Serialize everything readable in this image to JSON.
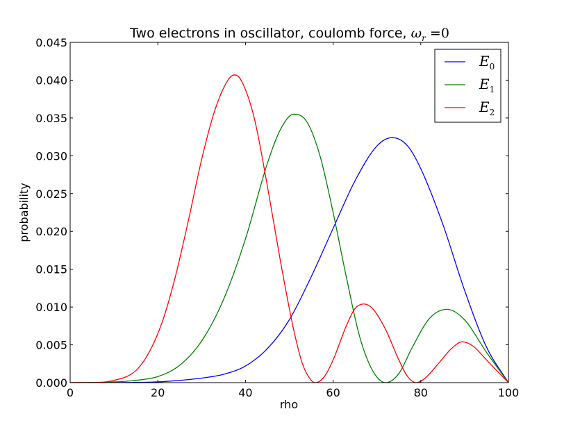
{
  "chart_data": {
    "type": "line",
    "title_text": "Two electrons in oscillator, coulomb force, ",
    "title_math": {
      "symbol": "ω",
      "subscript": "r",
      "rest": " =0"
    },
    "xlabel": "rho",
    "ylabel": "probability",
    "xlim": [
      0,
      100
    ],
    "ylim": [
      0,
      0.045
    ],
    "x_ticks": [
      0,
      20,
      40,
      60,
      80,
      100
    ],
    "y_ticks": [
      0.0,
      0.005,
      0.01,
      0.015,
      0.02,
      0.025,
      0.03,
      0.035,
      0.04,
      0.045
    ],
    "x_tick_labels": [
      "0",
      "20",
      "40",
      "60",
      "80",
      "100"
    ],
    "y_tick_labels": [
      "0.000",
      "0.005",
      "0.010",
      "0.015",
      "0.020",
      "0.025",
      "0.030",
      "0.035",
      "0.040",
      "0.045"
    ],
    "grid": false,
    "legend_position": "top-right",
    "series": [
      {
        "name": "E_0",
        "label_main": "E",
        "label_sub": "0",
        "color": "#0000ff",
        "x": [
          0,
          10,
          20,
          25,
          30,
          35,
          40,
          45,
          50,
          55,
          60,
          65,
          70,
          73.5,
          77,
          80,
          85,
          90,
          95,
          100
        ],
        "y": [
          0,
          1e-05,
          0.0001,
          0.0003,
          0.0006,
          0.0011,
          0.0022,
          0.0045,
          0.0083,
          0.014,
          0.0204,
          0.0267,
          0.0313,
          0.0324,
          0.0313,
          0.0283,
          0.021,
          0.0122,
          0.0047,
          0
        ]
      },
      {
        "name": "E_1",
        "label_main": "E",
        "label_sub": "1",
        "color": "#008000",
        "x": [
          0,
          10,
          15,
          20,
          25,
          30,
          35,
          40,
          45,
          48,
          51,
          54,
          57,
          60,
          63,
          66,
          69,
          72,
          75,
          78,
          82,
          86,
          90,
          95,
          100
        ],
        "y": [
          0,
          0.0001,
          0.0003,
          0.0008,
          0.0023,
          0.0055,
          0.011,
          0.019,
          0.029,
          0.0335,
          0.0355,
          0.0345,
          0.03,
          0.0225,
          0.014,
          0.0062,
          0.0016,
          0.0,
          0.0012,
          0.0046,
          0.0085,
          0.0097,
          0.0083,
          0.004,
          0
        ]
      },
      {
        "name": "E_2",
        "label_main": "E",
        "label_sub": "2",
        "color": "#ff0000",
        "x": [
          0,
          10,
          15,
          18,
          21,
          24,
          27,
          30,
          33,
          36,
          37.5,
          39,
          42,
          45,
          48,
          51,
          53,
          55,
          56,
          58,
          60,
          63,
          65,
          67,
          69,
          72,
          75,
          77,
          79,
          81,
          84,
          87,
          89.5,
          92,
          95,
          100
        ],
        "y": [
          0,
          0.0003,
          0.0016,
          0.004,
          0.008,
          0.014,
          0.0215,
          0.0295,
          0.036,
          0.04,
          0.0407,
          0.04,
          0.035,
          0.026,
          0.016,
          0.007,
          0.0025,
          0.0003,
          0.0,
          0.0008,
          0.003,
          0.0075,
          0.0098,
          0.0104,
          0.0098,
          0.007,
          0.003,
          0.0008,
          0.0,
          0.0006,
          0.0025,
          0.0045,
          0.0054,
          0.0048,
          0.003,
          0
        ]
      }
    ]
  }
}
